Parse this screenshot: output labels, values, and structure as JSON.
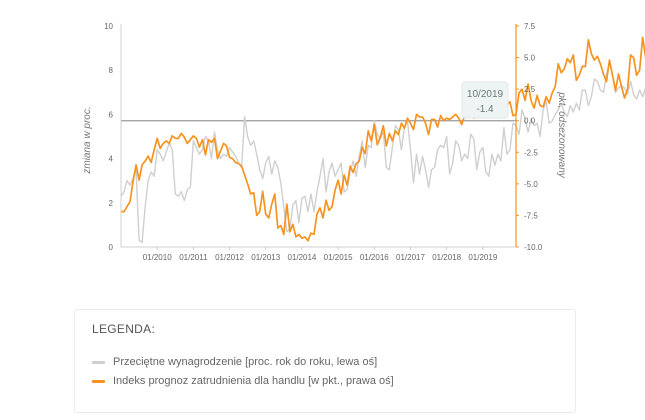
{
  "chart_data": {
    "type": "line",
    "x_ticks": [
      "01/2010",
      "01/2011",
      "01/2012",
      "01/2013",
      "01/2014",
      "01/2015",
      "01/2016",
      "01/2017",
      "01/2018",
      "01/2019"
    ],
    "x_start": "01/2009",
    "x_end": "12/2019",
    "ylabel_left": "zmiana w proc.",
    "ylabel_right": "pkt, odsezonowany",
    "ylim_left": [
      0,
      10
    ],
    "ylim_right": [
      -10,
      7.5
    ],
    "yticks_left": [
      "0",
      "2",
      "4",
      "6",
      "8",
      "10"
    ],
    "yticks_right": [
      "-10.0",
      "-7.5",
      "-5.0",
      "-2.5",
      "0.0",
      "2.5",
      "5.0",
      "7.5"
    ],
    "reference_line_right": 0.0,
    "series": [
      {
        "name": "Przeciętne wynagrodzenie [proc. rok do roku, lewa oś]",
        "axis": "left",
        "color": "#cfcfcf",
        "values": [
          2.3,
          2.5,
          3.0,
          2.8,
          3.1,
          3.5,
          0.3,
          0.2,
          1.8,
          3.0,
          3.4,
          3.2,
          4.4,
          4.2,
          3.9,
          4.3,
          4.7,
          4.4,
          2.4,
          2.3,
          2.5,
          2.1,
          2.6,
          2.7,
          4.8,
          4.5,
          4.2,
          4.4,
          5.0,
          4.8,
          4.0,
          5.2,
          4.4,
          4.0,
          4.2,
          4.1,
          4.5,
          4.3,
          4.1,
          3.8,
          3.6,
          5.9,
          5.0,
          4.6,
          4.8,
          4.2,
          3.5,
          3.1,
          3.8,
          4.1,
          3.3,
          3.9,
          3.6,
          2.9,
          1.8,
          0.7,
          0.8,
          1.9,
          2.1,
          1.1,
          2.2,
          2.3,
          1.6,
          2.4,
          1.6,
          2.5,
          3.2,
          4.0,
          2.5,
          3.4,
          3.8,
          3.2,
          3.5,
          3.8,
          2.5,
          2.6,
          3.4,
          3.9,
          3.2,
          4.1,
          4.8,
          3.6,
          4.6,
          4.5,
          5.7,
          5.1,
          4.9,
          5.2,
          3.6,
          3.5,
          4.5,
          5.5,
          5.3,
          4.4,
          5.4,
          5.7,
          4.4,
          2.9,
          4.2,
          3.3,
          4.1,
          3.5,
          2.7,
          3.5,
          3.6,
          4.4,
          4.6,
          4.5,
          5.0,
          3.3,
          3.8,
          4.8,
          4.6,
          3.9,
          4.2,
          4.0,
          5.1,
          4.9,
          3.5,
          4.3,
          4.5,
          3.4,
          3.2,
          4.2,
          3.7,
          4.2,
          3.9,
          5.4,
          4.2,
          4.4,
          5.6,
          5.5,
          5.1,
          6.2,
          5.8,
          5.2,
          5.8,
          5.5,
          5.6,
          5.0,
          6.2,
          6.6,
          5.6,
          5.7,
          6.0,
          6.2,
          6.5,
          6.1,
          5.9,
          6.4,
          6.1,
          6.5,
          6.2,
          7.1,
          7.1,
          6.4,
          6.8,
          7.6,
          7.5,
          7.1,
          7.0,
          7.8,
          8.4,
          7.8,
          7.0,
          7.2,
          7.3,
          7.2,
          6.9,
          7.5,
          6.9,
          6.7,
          7.1,
          6.8,
          7.2,
          7.0,
          6.3,
          7.1,
          6.5,
          6.6,
          6.9,
          7.3,
          7.6,
          7.2,
          6.5,
          5.9,
          6.5,
          6.3,
          5.6,
          8.5,
          8.6,
          6.9,
          7.8,
          7.2,
          6.3,
          7.1,
          7.6
        ]
      },
      {
        "name": "Indeks prognoz zatrudnienia dla handlu [w pkt., prawa oś]",
        "axis": "right",
        "color": "#f7931e",
        "values": [
          -7.2,
          -7.2,
          -6.8,
          -6.4,
          -4.8,
          -3.5,
          -4.7,
          -3.5,
          -3.2,
          -2.8,
          -3.3,
          -2.3,
          -1.4,
          -2.2,
          -1.8,
          -1.6,
          -1.8,
          -1.2,
          -1.4,
          -1.4,
          -1.0,
          -1.3,
          -1.8,
          -1.5,
          -1.2,
          -1.4,
          -2.1,
          -1.5,
          -2.7,
          -1.5,
          -1.7,
          -1.4,
          -3.0,
          -2.4,
          -1.8,
          -2.0,
          -2.9,
          -3.0,
          -3.3,
          -3.4,
          -3.6,
          -4.3,
          -5.0,
          -5.8,
          -5.7,
          -7.5,
          -7.2,
          -5.6,
          -7.4,
          -7.7,
          -6.6,
          -5.8,
          -8.5,
          -8.3,
          -9.0,
          -6.6,
          -8.8,
          -8.2,
          -9.2,
          -9.0,
          -9.3,
          -9.2,
          -9.5,
          -8.9,
          -9.0,
          -7.4,
          -6.9,
          -7.7,
          -6.3,
          -7.1,
          -6.8,
          -5.5,
          -4.7,
          -5.8,
          -4.3,
          -5.1,
          -3.6,
          -4.1,
          -3.4,
          -3.2,
          -2.1,
          -2.6,
          -0.8,
          -1.6,
          -0.3,
          -1.9,
          -1.3,
          -0.4,
          -2.0,
          -1.0,
          -1.6,
          -0.8,
          -1.1,
          -0.2,
          -0.6,
          0.2,
          -0.2,
          -0.7,
          0.5,
          0.3,
          0.3,
          -0.2,
          -1.1,
          0.1,
          0.1,
          -0.5,
          0.4,
          0.0,
          0.2,
          0.1,
          0.3,
          0.5,
          0.2,
          -0.3,
          0.4,
          0.4,
          0.8,
          0.2,
          0.4,
          0.3,
          1.2,
          0.6,
          0.9,
          1.3,
          0.3,
          0.9,
          0.3,
          0.4,
          1.2,
          1.5,
          0.4,
          0.5,
          2.2,
          2.5,
          1.6,
          2.9,
          1.6,
          1.0,
          2.0,
          1.2,
          1.1,
          1.9,
          1.4,
          2.2,
          2.7,
          4.5,
          3.8,
          4.1,
          4.9,
          4.6,
          5.2,
          3.2,
          3.6,
          4.3,
          4.3,
          6.4,
          5.3,
          4.8,
          5.1,
          4.5,
          3.7,
          3.1,
          4.8,
          3.6,
          2.4,
          3.7,
          2.7,
          1.8,
          2.5,
          5.2,
          5.0,
          3.6,
          4.0,
          6.6,
          5.0,
          3.5,
          2.8,
          3.4,
          2.3,
          1.4,
          1.9,
          3.8,
          4.0,
          3.2,
          2.6,
          3.0,
          4.5,
          3.9,
          2.4,
          1.3,
          4.7,
          2.7,
          2.9,
          4.4,
          4.6,
          5.8,
          4.3,
          1.8,
          2.2,
          1.9,
          2.1,
          1.0,
          1.4,
          0.0,
          0.6,
          0.4,
          0.3,
          -0.1,
          -0.1,
          -0.6,
          -1.4
        ]
      }
    ],
    "tooltip": {
      "date": "10/2019",
      "value": "-1.4"
    },
    "legend_position": "bottom"
  },
  "legend": {
    "title": "LEGENDA:",
    "items": [
      {
        "label": "Przeciętne wynagrodzenie [proc. rok do roku, lewa oś]",
        "color": "#cfcfcf"
      },
      {
        "label": "Indeks prognoz zatrudnienia dla handlu [w pkt., prawa oś]",
        "color": "#f7931e"
      }
    ]
  }
}
